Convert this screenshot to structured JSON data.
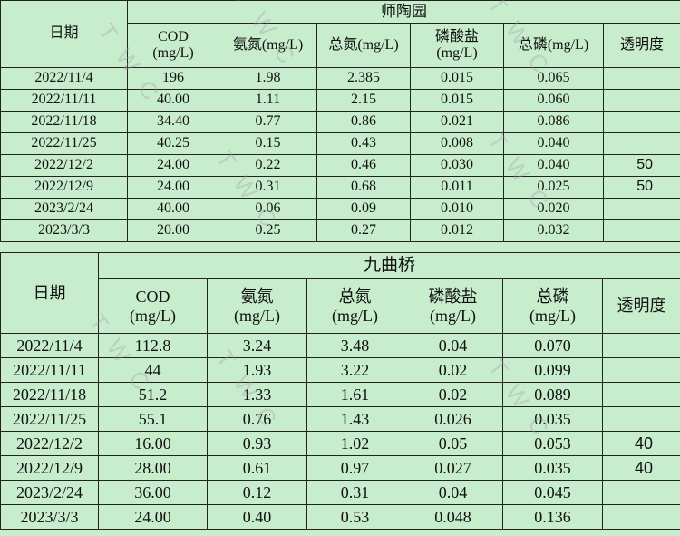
{
  "watermark": "TWC",
  "table1": {
    "title": "师陶园",
    "headers": {
      "date": "日期",
      "cod": "COD",
      "cod_unit": "(mg/L)",
      "nh3": "氨氮(mg/L)",
      "tn": "总氮(mg/L)",
      "po4": "磷酸盐",
      "po4_unit": "(mg/L)",
      "tp": "总磷(mg/L)",
      "transparency": "透明度"
    },
    "rows": [
      {
        "date": "2022/11/4",
        "cod": "196",
        "nh3": "1.98",
        "tn": "2.385",
        "po4": "0.015",
        "tp": "0.065",
        "transparency": ""
      },
      {
        "date": "2022/11/11",
        "cod": "40.00",
        "nh3": "1.11",
        "tn": "2.15",
        "po4": "0.015",
        "tp": "0.060",
        "transparency": ""
      },
      {
        "date": "2022/11/18",
        "cod": "34.40",
        "nh3": "0.77",
        "tn": "0.86",
        "po4": "0.021",
        "tp": "0.086",
        "transparency": ""
      },
      {
        "date": "2022/11/25",
        "cod": "40.25",
        "nh3": "0.15",
        "tn": "0.43",
        "po4": "0.008",
        "tp": "0.040",
        "transparency": ""
      },
      {
        "date": "2022/12/2",
        "cod": "24.00",
        "nh3": "0.22",
        "tn": "0.46",
        "po4": "0.030",
        "tp": "0.040",
        "transparency": "50"
      },
      {
        "date": "2022/12/9",
        "cod": "24.00",
        "nh3": "0.31",
        "tn": "0.68",
        "po4": "0.011",
        "tp": "0.025",
        "transparency": "50"
      },
      {
        "date": "2023/2/24",
        "cod": "40.00",
        "nh3": "0.06",
        "tn": "0.09",
        "po4": "0.010",
        "tp": "0.020",
        "transparency": ""
      },
      {
        "date": "2023/3/3",
        "cod": "20.00",
        "nh3": "0.25",
        "tn": "0.27",
        "po4": "0.012",
        "tp": "0.032",
        "transparency": ""
      }
    ]
  },
  "table2": {
    "title": "九曲桥",
    "headers": {
      "date": "日期",
      "cod": "COD",
      "nh3": "氨氮",
      "tn": "总氮",
      "po4": "磷酸盐",
      "tp": "总磷",
      "unit": "(mg/L)",
      "transparency": "透明度"
    },
    "rows": [
      {
        "date": "2022/11/4",
        "cod": "112.8",
        "nh3": "3.24",
        "tn": "3.48",
        "po4": "0.04",
        "tp": "0.070",
        "transparency": ""
      },
      {
        "date": "2022/11/11",
        "cod": "44",
        "nh3": "1.93",
        "tn": "3.22",
        "po4": "0.02",
        "tp": "0.099",
        "transparency": ""
      },
      {
        "date": "2022/11/18",
        "cod": "51.2",
        "nh3": "1.33",
        "tn": "1.61",
        "po4": "0.02",
        "tp": "0.089",
        "transparency": ""
      },
      {
        "date": "2022/11/25",
        "cod": "55.1",
        "nh3": "0.76",
        "tn": "1.43",
        "po4": "0.026",
        "tp": "0.035",
        "transparency": ""
      },
      {
        "date": "2022/12/2",
        "cod": "16.00",
        "nh3": "0.93",
        "tn": "1.02",
        "po4": "0.05",
        "tp": "0.053",
        "transparency": "40"
      },
      {
        "date": "2022/12/9",
        "cod": "28.00",
        "nh3": "0.61",
        "tn": "0.97",
        "po4": "0.027",
        "tp": "0.035",
        "transparency": "40"
      },
      {
        "date": "2023/2/24",
        "cod": "36.00",
        "nh3": "0.12",
        "tn": "0.31",
        "po4": "0.04",
        "tp": "0.045",
        "transparency": ""
      },
      {
        "date": "2023/3/3",
        "cod": "24.00",
        "nh3": "0.40",
        "tn": "0.53",
        "po4": "0.048",
        "tp": "0.136",
        "transparency": ""
      }
    ]
  }
}
